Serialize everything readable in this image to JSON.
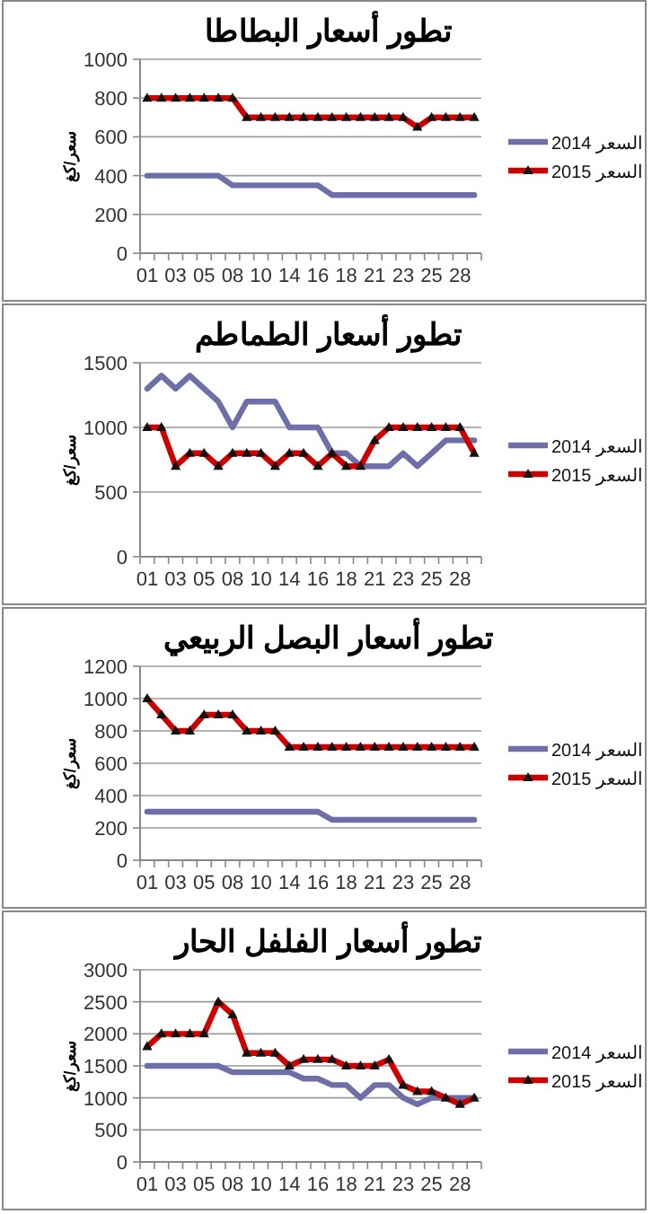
{
  "chart_data": [
    {
      "type": "line",
      "title": "تطور أسعار البطاطا",
      "ylabel": "سعر/كغ",
      "categories": [
        "01",
        null,
        "03",
        null,
        "05",
        null,
        "08",
        null,
        "10",
        null,
        "14",
        null,
        "16",
        null,
        "18",
        null,
        "21",
        null,
        "23",
        null,
        "25",
        null,
        "28",
        null
      ],
      "ylim": [
        0,
        1000
      ],
      "yticks": [
        0,
        200,
        400,
        600,
        800,
        1000
      ],
      "grid": "y",
      "legend": "right",
      "series": [
        {
          "name": "السعر 2014",
          "color": "#6e6fa8",
          "marker": "none",
          "values": [
            400,
            400,
            400,
            400,
            400,
            400,
            350,
            350,
            350,
            350,
            350,
            350,
            350,
            300,
            300,
            300,
            300,
            300,
            300,
            300,
            300,
            300,
            300,
            300
          ]
        },
        {
          "name": "السعر 2015",
          "color": "#cc0000",
          "marker": "triangle",
          "values": [
            800,
            800,
            800,
            800,
            800,
            800,
            800,
            700,
            700,
            700,
            700,
            700,
            700,
            700,
            700,
            700,
            700,
            700,
            700,
            650,
            700,
            700,
            700,
            700
          ]
        }
      ]
    },
    {
      "type": "line",
      "title": "تطور أسعار الطماطم",
      "ylabel": "سعر/كغ",
      "categories": [
        "01",
        null,
        "03",
        null,
        "05",
        null,
        "08",
        null,
        "10",
        null,
        "14",
        null,
        "16",
        null,
        "18",
        null,
        "21",
        null,
        "23",
        null,
        "25",
        null,
        "28",
        null
      ],
      "ylim": [
        0,
        1500
      ],
      "yticks": [
        0,
        500,
        1000,
        1500
      ],
      "grid": "y",
      "legend": "right",
      "series": [
        {
          "name": "السعر 2014",
          "color": "#6e6fa8",
          "marker": "none",
          "values": [
            1300,
            1400,
            1300,
            1400,
            1300,
            1200,
            1000,
            1200,
            1200,
            1200,
            1000,
            1000,
            1000,
            800,
            800,
            700,
            700,
            700,
            800,
            700,
            800,
            900,
            900,
            900
          ]
        },
        {
          "name": "السعر 2015",
          "color": "#cc0000",
          "marker": "triangle",
          "values": [
            1000,
            1000,
            700,
            800,
            800,
            700,
            800,
            800,
            800,
            700,
            800,
            800,
            700,
            800,
            700,
            700,
            900,
            1000,
            1000,
            1000,
            1000,
            1000,
            1000,
            800
          ]
        }
      ]
    },
    {
      "type": "line",
      "title": "تطور أسعار البصل الربيعي",
      "ylabel": "سعر/كغ",
      "categories": [
        "01",
        null,
        "03",
        null,
        "05",
        null,
        "08",
        null,
        "10",
        null,
        "14",
        null,
        "16",
        null,
        "18",
        null,
        "21",
        null,
        "23",
        null,
        "25",
        null,
        "28",
        null
      ],
      "ylim": [
        0,
        1200
      ],
      "yticks": [
        0,
        200,
        400,
        600,
        800,
        1000,
        1200
      ],
      "grid": "y",
      "legend": "right",
      "series": [
        {
          "name": "السعر 2014",
          "color": "#6e6fa8",
          "marker": "none",
          "values": [
            300,
            300,
            300,
            300,
            300,
            300,
            300,
            300,
            300,
            300,
            300,
            300,
            300,
            250,
            250,
            250,
            250,
            250,
            250,
            250,
            250,
            250,
            250,
            250
          ]
        },
        {
          "name": "السعر 2015",
          "color": "#cc0000",
          "marker": "triangle",
          "values": [
            1000,
            900,
            800,
            800,
            900,
            900,
            900,
            800,
            800,
            800,
            700,
            700,
            700,
            700,
            700,
            700,
            700,
            700,
            700,
            700,
            700,
            700,
            700,
            700
          ]
        }
      ]
    },
    {
      "type": "line",
      "title": "تطور أسعار الفلفل الحار",
      "ylabel": "سعر/كغ",
      "categories": [
        "01",
        null,
        "03",
        null,
        "05",
        null,
        "08",
        null,
        "10",
        null,
        "14",
        null,
        "16",
        null,
        "18",
        null,
        "21",
        null,
        "23",
        null,
        "25",
        null,
        "28",
        null
      ],
      "ylim": [
        0,
        3000
      ],
      "yticks": [
        0,
        500,
        1000,
        1500,
        2000,
        2500,
        3000
      ],
      "grid": "y",
      "legend": "right",
      "series": [
        {
          "name": "السعر 2014",
          "color": "#6e6fa8",
          "marker": "none",
          "values": [
            1500,
            1500,
            1500,
            1500,
            1500,
            1500,
            1400,
            1400,
            1400,
            1400,
            1400,
            1300,
            1300,
            1200,
            1200,
            1000,
            1200,
            1200,
            1000,
            900,
            1000,
            1000,
            1000,
            1000
          ]
        },
        {
          "name": "السعر 2015",
          "color": "#cc0000",
          "marker": "triangle",
          "values": [
            1800,
            2000,
            2000,
            2000,
            2000,
            2500,
            2300,
            1700,
            1700,
            1700,
            1500,
            1600,
            1600,
            1600,
            1500,
            1500,
            1500,
            1600,
            1200,
            1100,
            1100,
            1000,
            900,
            1000
          ]
        }
      ]
    }
  ]
}
